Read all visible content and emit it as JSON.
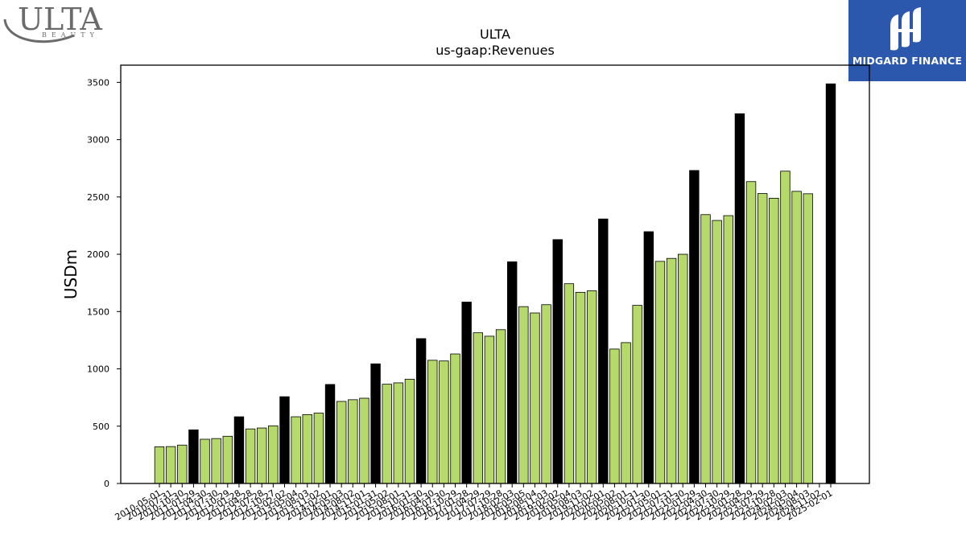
{
  "logos": {
    "left": {
      "name": "ULTA",
      "subtext": "BEAUTY"
    },
    "right": {
      "name": "MIDGARD FINANCE"
    }
  },
  "colors": {
    "quarterly_bar": "#b5d96a",
    "annual_bar": "#000000",
    "bar_edge": "#000000",
    "brand_blue": "#2b58ad"
  },
  "chart_data": {
    "type": "bar",
    "title": "ULTA",
    "subtitle": "us-gaap:Revenues",
    "xlabel": "",
    "ylabel": "USDm",
    "ylim": [
      0,
      3650
    ],
    "yticks": [
      0,
      500,
      1000,
      1500,
      2000,
      2500,
      3000,
      3500
    ],
    "grid": false,
    "legend": "none",
    "categories": [
      "2010-05-01",
      "2010-07-31",
      "2010-10-30",
      "2011-01-29",
      "2011-04-30",
      "2011-07-30",
      "2011-10-29",
      "2012-01-28",
      "2012-04-28",
      "2012-07-28",
      "2012-10-27",
      "2013-02-02",
      "2013-05-04",
      "2013-08-03",
      "2013-11-02",
      "2014-02-01",
      "2014-05-03",
      "2014-08-02",
      "2014-11-01",
      "2015-01-31",
      "2015-05-02",
      "2015-08-01",
      "2015-10-31",
      "2016-01-30",
      "2016-04-30",
      "2016-07-30",
      "2016-10-29",
      "2017-01-28",
      "2017-04-29",
      "2017-07-29",
      "2017-10-28",
      "2018-02-03",
      "2018-05-05",
      "2018-08-04",
      "2018-11-03",
      "2019-02-02",
      "2019-05-04",
      "2019-08-03",
      "2019-11-02",
      "2020-02-01",
      "2020-05-02",
      "2020-08-01",
      "2020-10-31",
      "2021-01-30",
      "2021-05-01",
      "2021-07-31",
      "2021-10-30",
      "2022-01-29",
      "2022-04-30",
      "2022-07-30",
      "2022-10-29",
      "2023-01-28",
      "2023-04-29",
      "2023-07-29",
      "2023-10-28",
      "2024-02-03",
      "2024-05-04",
      "2024-08-03",
      "2024-11-02",
      "2025-02-01"
    ],
    "values": [
      320,
      322,
      335,
      468,
      386,
      392,
      412,
      582,
      476,
      484,
      503,
      757,
      582,
      601,
      614,
      864,
      716,
      731,
      744,
      1044,
      866,
      878,
      910,
      1264,
      1075,
      1069,
      1130,
      1583,
      1315,
      1285,
      1342,
      1934,
      1543,
      1488,
      1560,
      2128,
      1743,
      1668,
      1681,
      2308,
      1173,
      1229,
      1554,
      2197,
      1938,
      1964,
      2000,
      2731,
      2346,
      2295,
      2337,
      3226,
      2634,
      2530,
      2489,
      2725,
      2549,
      2528,
      null,
      3487
    ],
    "annual": [
      false,
      false,
      false,
      true,
      false,
      false,
      false,
      true,
      false,
      false,
      false,
      true,
      false,
      false,
      false,
      true,
      false,
      false,
      false,
      true,
      false,
      false,
      false,
      true,
      false,
      false,
      false,
      true,
      false,
      false,
      false,
      true,
      false,
      false,
      false,
      true,
      false,
      false,
      false,
      true,
      false,
      false,
      false,
      true,
      false,
      false,
      false,
      true,
      false,
      false,
      false,
      true,
      false,
      false,
      false,
      false,
      false,
      false,
      false,
      true
    ]
  }
}
